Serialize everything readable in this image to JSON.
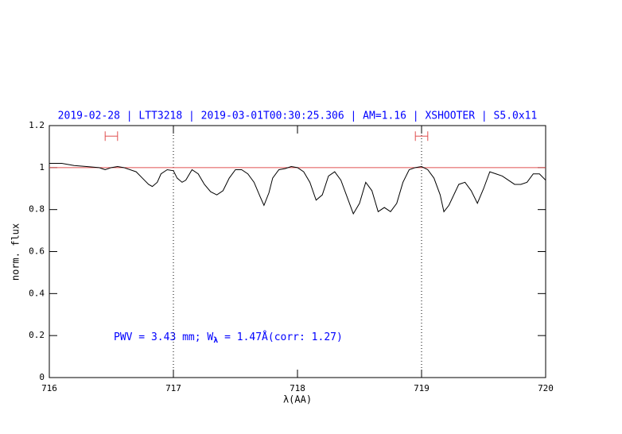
{
  "chart_data": {
    "type": "line",
    "title": "2019-02-28 | LTT3218 | 2019-03-01T00:30:25.306 | AM=1.16 | XSHOOTER | S5.0x11",
    "x_label": "λ(AA)",
    "y_label": "norm. flux",
    "annotation": [
      "PWV = 3.43 mm; W",
      "λ",
      " = 1.47Å(corr: 1.27)"
    ],
    "xlim": [
      716,
      720
    ],
    "ylim": [
      0,
      1.2
    ],
    "xticks": [
      716,
      717,
      718,
      719,
      720
    ],
    "yticks": [
      0,
      0.2,
      0.4,
      0.6,
      0.8,
      1,
      1.2
    ],
    "hline": 1,
    "hline_color": "#e05050",
    "vlines": [
      717,
      719
    ],
    "intervals": [
      [
        716.45,
        716.55
      ],
      [
        718.95,
        719.05
      ]
    ],
    "interval_y": 1.15,
    "interval_color": "#e05050",
    "x": [
      716.0,
      716.1,
      716.2,
      716.3,
      716.4,
      716.45,
      716.5,
      716.55,
      716.6,
      716.7,
      716.75,
      716.8,
      716.83,
      716.87,
      716.9,
      716.95,
      717.0,
      717.03,
      717.07,
      717.1,
      717.15,
      717.2,
      717.25,
      717.3,
      717.35,
      717.4,
      717.45,
      717.5,
      717.55,
      717.6,
      717.65,
      717.7,
      717.73,
      717.77,
      717.8,
      717.85,
      717.9,
      717.95,
      718.0,
      718.05,
      718.1,
      718.15,
      718.2,
      718.25,
      718.3,
      718.35,
      718.4,
      718.45,
      718.5,
      718.55,
      718.6,
      718.65,
      718.7,
      718.75,
      718.8,
      718.85,
      718.9,
      718.95,
      719.0,
      719.05,
      719.1,
      719.15,
      719.18,
      719.22,
      719.3,
      719.35,
      719.4,
      719.45,
      719.5,
      719.55,
      719.6,
      719.65,
      719.7,
      719.75,
      719.8,
      719.85,
      719.9,
      719.95,
      720.0
    ],
    "series": [
      {
        "color": "#000000",
        "values": [
          1.02,
          1.02,
          1.01,
          1.005,
          1.0,
          0.99,
          1.0,
          1.005,
          1.0,
          0.98,
          0.95,
          0.92,
          0.91,
          0.93,
          0.97,
          0.99,
          0.985,
          0.95,
          0.93,
          0.94,
          0.99,
          0.97,
          0.92,
          0.885,
          0.87,
          0.89,
          0.95,
          0.99,
          0.99,
          0.97,
          0.93,
          0.86,
          0.82,
          0.88,
          0.95,
          0.99,
          0.995,
          1.005,
          1.0,
          0.98,
          0.93,
          0.845,
          0.87,
          0.96,
          0.98,
          0.94,
          0.86,
          0.78,
          0.83,
          0.93,
          0.89,
          0.79,
          0.81,
          0.79,
          0.83,
          0.93,
          0.99,
          1.0,
          1.005,
          0.99,
          0.95,
          0.87,
          0.79,
          0.82,
          0.92,
          0.93,
          0.89,
          0.83,
          0.9,
          0.98,
          0.97,
          0.96,
          0.94,
          0.92,
          0.92,
          0.93,
          0.97,
          0.97,
          0.94
        ]
      }
    ],
    "title_color": "#0000ff",
    "annotation_color": "#0000ff"
  }
}
